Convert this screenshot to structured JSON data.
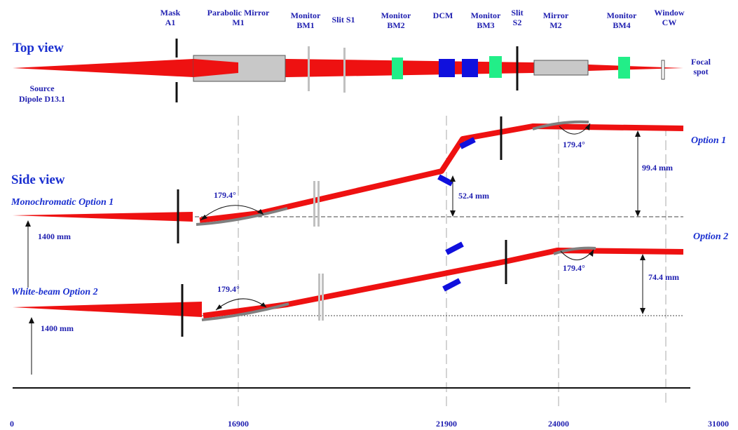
{
  "components": {
    "mask": "Mask\nA1",
    "m1": "Parabolic Mirror\nM1",
    "bm1": "Monitor\nBM1",
    "s1": "Slit S1",
    "bm2": "Monitor\nBM2",
    "dcm": "DCM",
    "bm3": "Monitor\nBM3",
    "s2": "Slit\nS2",
    "m2": "Mirror\nM2",
    "bm4": "Monitor\nBM4",
    "cw": "Window\nCW"
  },
  "views": {
    "top": "Top view",
    "side": "Side view",
    "source": "Source\nDipole D13.1",
    "focal": "Focal\nspot"
  },
  "options": {
    "mono": "Monochromatic Option 1",
    "white": "White-beam Option 2",
    "opt1": "Option 1",
    "opt2": "Option 2"
  },
  "measures": {
    "height1": "1400 mm",
    "height2": "1400 mm",
    "angle_a": "179.4°",
    "angle_b": "179.4°",
    "angle_c": "179.4°",
    "angle_d": "179.4°",
    "d524": "52.4 mm",
    "d994": "99.4 mm",
    "d744": "74.4 mm"
  },
  "axis_ticks": [
    "0",
    "16900",
    "21900",
    "24000",
    "31000"
  ],
  "colors": {
    "beam": "#ee1111",
    "label": "#1f1fb0",
    "monitor": "#22ee88",
    "dcm": "#1010dd",
    "mirror": "#c8c8c8"
  }
}
